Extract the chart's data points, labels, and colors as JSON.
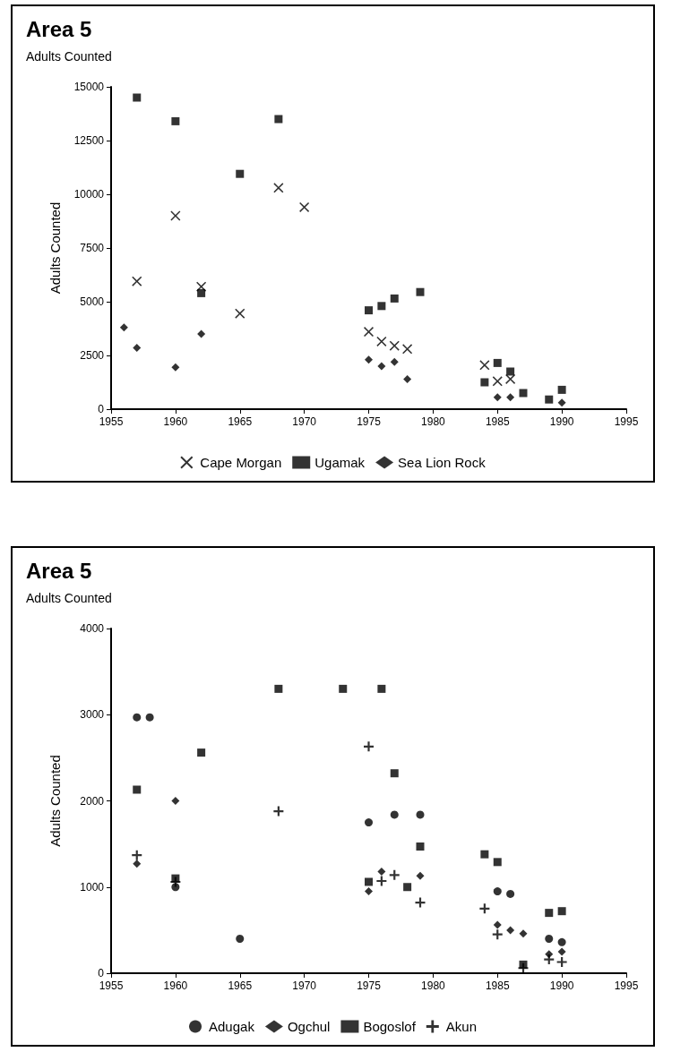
{
  "chart_data": [
    {
      "type": "scatter",
      "title": "Area 5",
      "subtitle": "Adults Counted",
      "ylabel": "Adults Counted",
      "xlim": [
        1955,
        1995
      ],
      "xticks": [
        1955,
        1960,
        1965,
        1970,
        1975,
        1980,
        1985,
        1990,
        1995
      ],
      "ylim": [
        0,
        15000
      ],
      "yticks": [
        0,
        2500,
        5000,
        7500,
        10000,
        12500,
        15000
      ],
      "grid": false,
      "legend": "bottom",
      "series": [
        {
          "name": "Cape Morgan",
          "color": "#000000",
          "marker": "cross",
          "x": [
            1957,
            1960,
            1962,
            1965,
            1968,
            1970,
            1975,
            1976,
            1977,
            1978,
            1984,
            1985,
            1986
          ],
          "values": [
            5950,
            9000,
            5700,
            4450,
            10300,
            9400,
            3600,
            3150,
            2950,
            2800,
            2050,
            1300,
            1400
          ]
        },
        {
          "name": "Ugamak",
          "color": "#000000",
          "marker": "square",
          "x": [
            1957,
            1960,
            1962,
            1965,
            1968,
            1975,
            1976,
            1977,
            1979,
            1984,
            1985,
            1986,
            1987,
            1989,
            1990
          ],
          "values": [
            14500,
            13400,
            5400,
            10950,
            13500,
            4600,
            4800,
            5150,
            5450,
            1250,
            2150,
            1750,
            750,
            450,
            900
          ]
        },
        {
          "name": "Sea Lion Rock",
          "color": "#000000",
          "marker": "diamond",
          "x": [
            1956,
            1957,
            1960,
            1962,
            1975,
            1976,
            1977,
            1978,
            1985,
            1986,
            1990
          ],
          "values": [
            3800,
            2850,
            1950,
            3500,
            2300,
            2000,
            2200,
            1400,
            550,
            550,
            300
          ]
        }
      ]
    },
    {
      "type": "scatter",
      "title": "Area 5",
      "subtitle": "Adults Counted",
      "ylabel": "Adults Counted",
      "xlim": [
        1955,
        1995
      ],
      "xticks": [
        1955,
        1960,
        1965,
        1970,
        1975,
        1980,
        1985,
        1990,
        1995
      ],
      "ylim": [
        0,
        4000
      ],
      "yticks": [
        0,
        1000,
        2000,
        3000,
        4000
      ],
      "grid": false,
      "legend": "bottom",
      "series": [
        {
          "name": "Adugak",
          "color": "#000000",
          "marker": "circle",
          "x": [
            1957,
            1958,
            1960,
            1965,
            1975,
            1977,
            1979,
            1985,
            1986,
            1989,
            1990
          ],
          "values": [
            2970,
            2970,
            1000,
            400,
            1750,
            1840,
            1840,
            950,
            920,
            400,
            360
          ]
        },
        {
          "name": "Ogchul",
          "color": "#000000",
          "marker": "diamond",
          "x": [
            1957,
            1960,
            1975,
            1976,
            1979,
            1985,
            1986,
            1987,
            1989,
            1990
          ],
          "values": [
            1270,
            2000,
            950,
            1180,
            1130,
            560,
            500,
            460,
            220,
            250
          ]
        },
        {
          "name": "Bogoslof",
          "color": "#000000",
          "marker": "square",
          "x": [
            1957,
            1960,
            1962,
            1968,
            1973,
            1976,
            1977,
            1979,
            1975,
            1978,
            1984,
            1985,
            1989,
            1990,
            1987
          ],
          "values": [
            2130,
            1100,
            2560,
            3300,
            3300,
            3300,
            2320,
            1470,
            1060,
            1000,
            1380,
            1290,
            700,
            720,
            100
          ]
        },
        {
          "name": "Akun",
          "color": "#000000",
          "marker": "plus",
          "x": [
            1957,
            1960,
            1968,
            1975,
            1976,
            1977,
            1979,
            1984,
            1985,
            1987,
            1989,
            1990
          ],
          "values": [
            1370,
            1060,
            1880,
            2630,
            1070,
            1140,
            820,
            750,
            450,
            60,
            160,
            130
          ]
        }
      ]
    }
  ]
}
